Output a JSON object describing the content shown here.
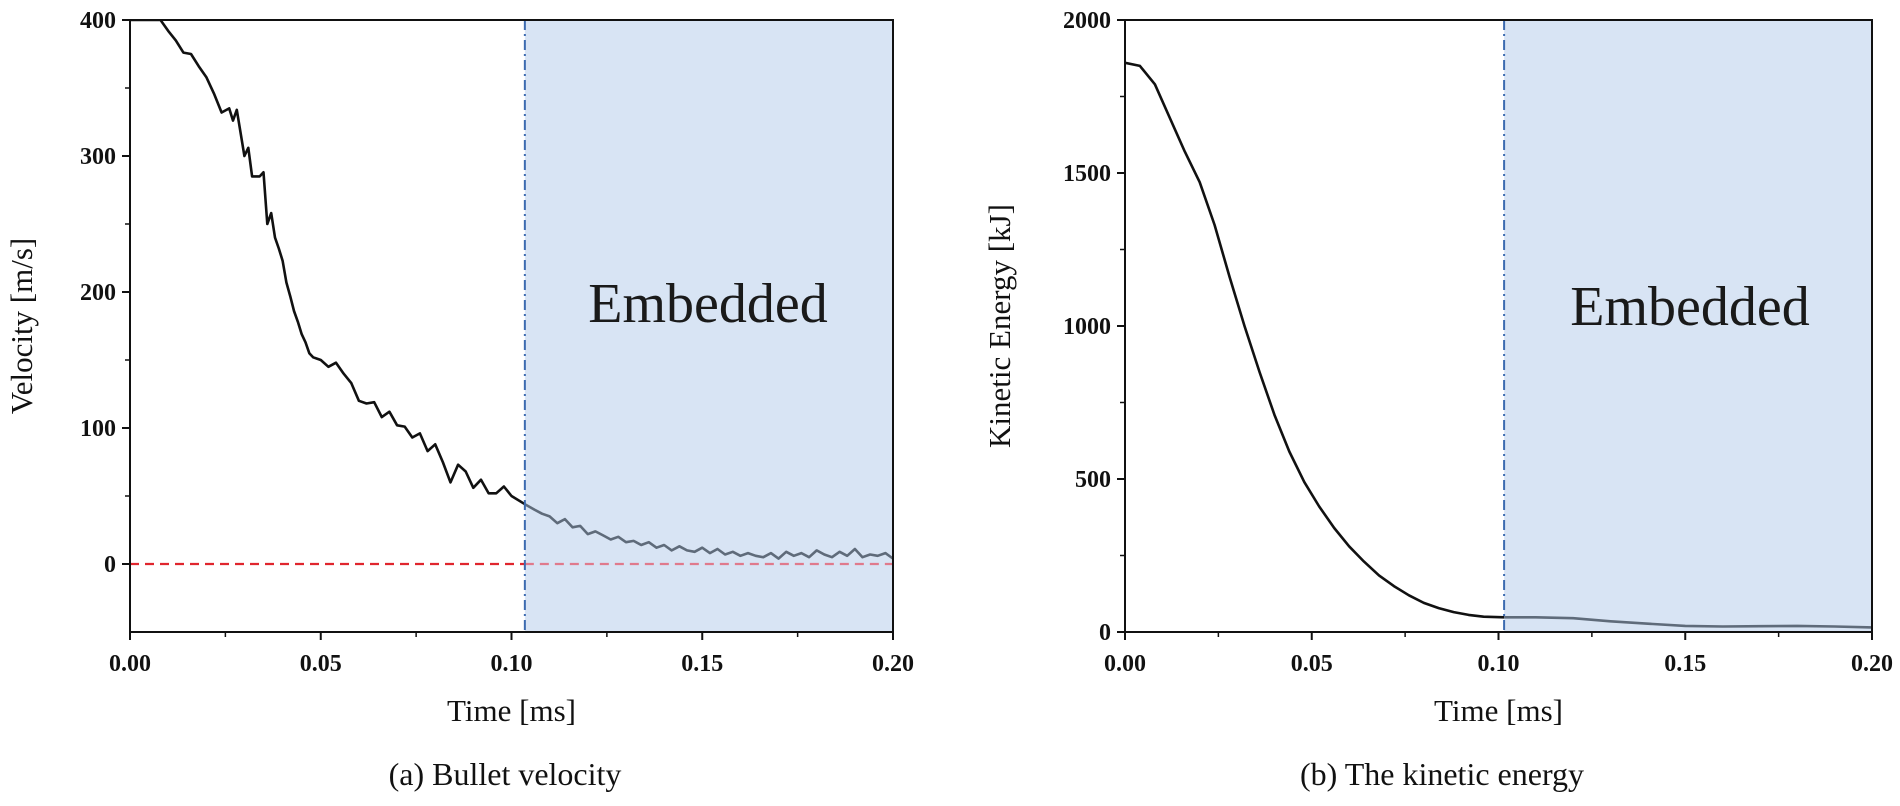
{
  "figure": {
    "captions": [
      "(a) Bullet velocity",
      "(b) The kinetic energy"
    ]
  },
  "colors": {
    "curve": "#111111",
    "curve_shaded": "#5f6b7a",
    "shade": "#d8e4f4",
    "divider": "#3c6bb0",
    "zero_line": "#e0262e"
  },
  "chart_data": [
    {
      "type": "line",
      "title": "(a) Bullet velocity",
      "xlabel": "Time [ms]",
      "ylabel": "Velocity [m/s]",
      "xlim": [
        0,
        0.2
      ],
      "ylim": [
        -50,
        400
      ],
      "xticks": [
        0.0,
        0.05,
        0.1,
        0.15,
        0.2
      ],
      "xtick_labels": [
        "0.00",
        "0.05",
        "0.10",
        "0.15",
        "0.20"
      ],
      "yticks": [
        0,
        100,
        200,
        300,
        400
      ],
      "ytick_labels": [
        "0",
        "100",
        "200",
        "300",
        "400"
      ],
      "shaded_region": {
        "x": [
          0.1035,
          0.2
        ],
        "label": "Embedded"
      },
      "vertical_line_x": 0.1035,
      "reference_line": {
        "y": 0,
        "style": "dashed"
      },
      "series": [
        {
          "name": "Velocity",
          "x": [
            0,
            0.003,
            0.006,
            0.008,
            0.01,
            0.012,
            0.014,
            0.016,
            0.018,
            0.02,
            0.022,
            0.024,
            0.026,
            0.027,
            0.028,
            0.03,
            0.031,
            0.032,
            0.034,
            0.035,
            0.036,
            0.037,
            0.038,
            0.039,
            0.04,
            0.041,
            0.042,
            0.043,
            0.044,
            0.045,
            0.046,
            0.047,
            0.048,
            0.049,
            0.05,
            0.052,
            0.054,
            0.056,
            0.058,
            0.06,
            0.062,
            0.064,
            0.066,
            0.068,
            0.07,
            0.072,
            0.074,
            0.076,
            0.078,
            0.08,
            0.082,
            0.084,
            0.086,
            0.088,
            0.09,
            0.092,
            0.094,
            0.096,
            0.098,
            0.1,
            0.1035,
            0.106,
            0.108,
            0.11,
            0.112,
            0.114,
            0.116,
            0.118,
            0.12,
            0.122,
            0.124,
            0.126,
            0.128,
            0.13,
            0.132,
            0.134,
            0.136,
            0.138,
            0.14,
            0.142,
            0.144,
            0.146,
            0.148,
            0.15,
            0.152,
            0.154,
            0.156,
            0.158,
            0.16,
            0.162,
            0.164,
            0.166,
            0.168,
            0.17,
            0.172,
            0.174,
            0.176,
            0.178,
            0.18,
            0.182,
            0.184,
            0.186,
            0.188,
            0.19,
            0.192,
            0.194,
            0.196,
            0.198,
            0.2
          ],
          "y": [
            400,
            400,
            400,
            400,
            392,
            385,
            376,
            375,
            366,
            358,
            346,
            332,
            335,
            326,
            334,
            300,
            306,
            285,
            285,
            288,
            250,
            258,
            240,
            232,
            223,
            207,
            197,
            186,
            178,
            169,
            163,
            155,
            152,
            151,
            150,
            145,
            148,
            140,
            133,
            120,
            118,
            119,
            108,
            112,
            102,
            101,
            93,
            96,
            83,
            88,
            75,
            60,
            73,
            68,
            56,
            62,
            52,
            52,
            57,
            50,
            44,
            40,
            37,
            35,
            30,
            33,
            27,
            28,
            22,
            24,
            21,
            18,
            20,
            16,
            17,
            14,
            16,
            12,
            14,
            10,
            13,
            10,
            9,
            12,
            8,
            11,
            7,
            9,
            6,
            8,
            6,
            5,
            8,
            4,
            9,
            6,
            8,
            5,
            10,
            7,
            5,
            9,
            6,
            11,
            5,
            7,
            6,
            8,
            4
          ]
        }
      ]
    },
    {
      "type": "line",
      "title": "(b) The kinetic energy",
      "xlabel": "Time [ms]",
      "ylabel": "Kinetic Energy [kJ]",
      "xlim": [
        0,
        0.2
      ],
      "ylim": [
        0,
        2000
      ],
      "xticks": [
        0.0,
        0.05,
        0.1,
        0.15,
        0.2
      ],
      "xtick_labels": [
        "0.00",
        "0.05",
        "0.10",
        "0.15",
        "0.20"
      ],
      "yticks": [
        0,
        500,
        1000,
        1500,
        2000
      ],
      "ytick_labels": [
        "0",
        "500",
        "1000",
        "1500",
        "2000"
      ],
      "shaded_region": {
        "x": [
          0.1015,
          0.2
        ],
        "label": "Embedded"
      },
      "vertical_line_x": 0.1015,
      "series": [
        {
          "name": "Kinetic Energy",
          "x": [
            0,
            0.004,
            0.008,
            0.012,
            0.016,
            0.02,
            0.024,
            0.028,
            0.032,
            0.036,
            0.04,
            0.044,
            0.048,
            0.052,
            0.056,
            0.06,
            0.064,
            0.068,
            0.072,
            0.076,
            0.08,
            0.084,
            0.088,
            0.092,
            0.096,
            0.1015,
            0.11,
            0.12,
            0.13,
            0.14,
            0.15,
            0.16,
            0.17,
            0.18,
            0.19,
            0.2
          ],
          "y": [
            1860,
            1850,
            1790,
            1680,
            1570,
            1470,
            1330,
            1160,
            1000,
            850,
            710,
            590,
            490,
            410,
            340,
            280,
            230,
            185,
            150,
            120,
            95,
            78,
            65,
            56,
            50,
            48,
            48,
            45,
            35,
            27,
            20,
            18,
            19,
            20,
            18,
            15
          ]
        }
      ]
    }
  ]
}
